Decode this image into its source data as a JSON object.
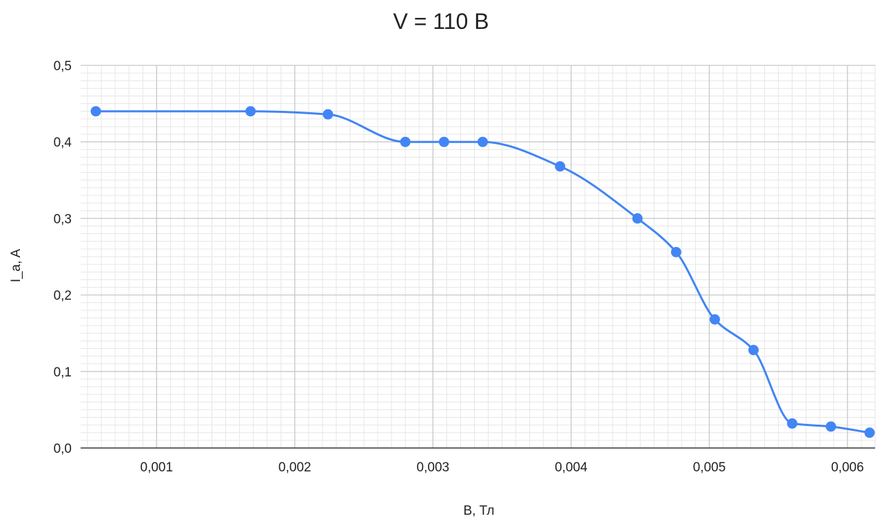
{
  "chart_data": {
    "type": "line",
    "title": "V = 110 В",
    "xlabel": "B, Тл",
    "ylabel": "I_a, A",
    "xlim": [
      0.00045,
      0.0062
    ],
    "ylim": [
      0,
      0.5
    ],
    "x_ticks": [
      0.001,
      0.002,
      0.003,
      0.004,
      0.005,
      0.006
    ],
    "x_tick_labels": [
      "0,001",
      "0,002",
      "0,003",
      "0,004",
      "0,005",
      "0,006"
    ],
    "y_ticks": [
      0,
      0.1,
      0.2,
      0.3,
      0.4,
      0.5
    ],
    "y_tick_labels": [
      "0,0",
      "0,1",
      "0,2",
      "0,3",
      "0,4",
      "0,5"
    ],
    "grid": true,
    "minor_grid": true,
    "smooth": true,
    "markers": true,
    "legend": "none",
    "series": [
      {
        "color": "#4285f4",
        "x": [
          0.00056,
          0.00168,
          0.00224,
          0.0028,
          0.00308,
          0.00336,
          0.00392,
          0.00448,
          0.00476,
          0.00504,
          0.00532,
          0.0056,
          0.00588,
          0.00616
        ],
        "y": [
          0.44,
          0.44,
          0.436,
          0.4,
          0.4,
          0.4,
          0.368,
          0.3,
          0.256,
          0.168,
          0.128,
          0.032,
          0.028,
          0.02
        ]
      }
    ]
  }
}
